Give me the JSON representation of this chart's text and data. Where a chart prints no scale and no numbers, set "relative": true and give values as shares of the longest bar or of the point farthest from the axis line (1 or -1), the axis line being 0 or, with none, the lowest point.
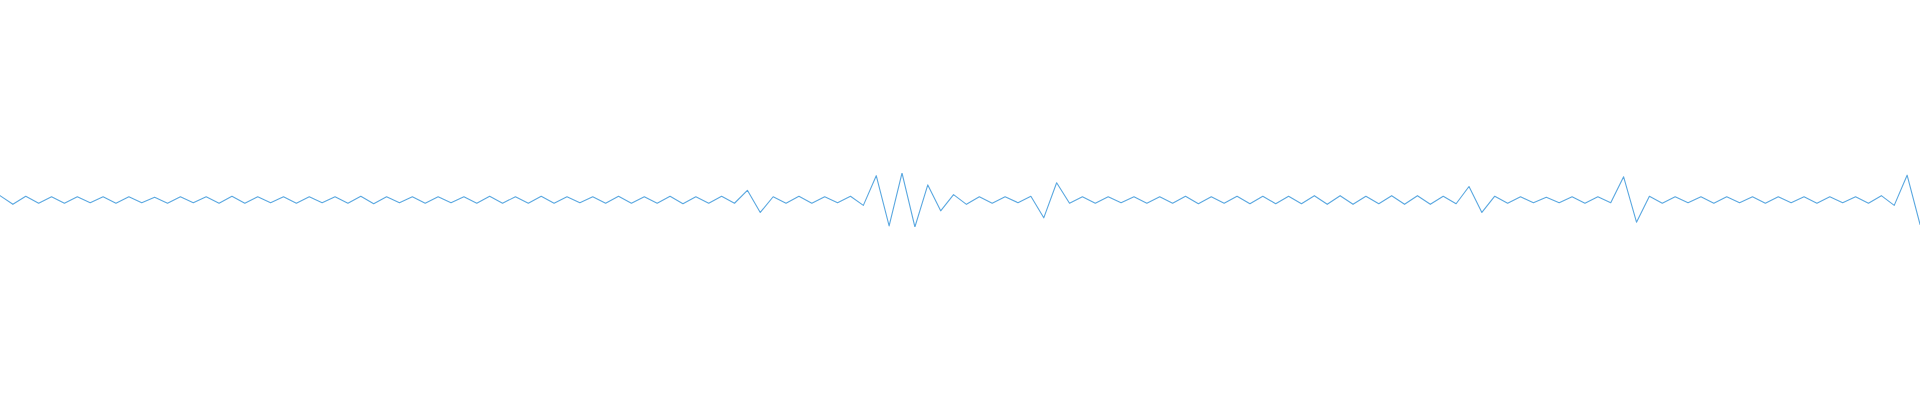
{
  "chart_data": {
    "type": "line",
    "relative": true,
    "marker": "none",
    "line_style": "solid",
    "categories": [
      null,
      null,
      null,
      null,
      null,
      null,
      null,
      null,
      null,
      null,
      null,
      null,
      null,
      null,
      null,
      null,
      null,
      null,
      null,
      null,
      null,
      null,
      null,
      null,
      null,
      null,
      null,
      null,
      null,
      null,
      null,
      null,
      null,
      null,
      null,
      null,
      null,
      null,
      null,
      null,
      null,
      null,
      null,
      null,
      null,
      null,
      null,
      null,
      null,
      null,
      null,
      null,
      null,
      null,
      null,
      null,
      null,
      null,
      null,
      null,
      null,
      null,
      null,
      null,
      null,
      null,
      null,
      null,
      null,
      null,
      null,
      null,
      null,
      null,
      null,
      null,
      null,
      null,
      null,
      null,
      null,
      null,
      null,
      null,
      null,
      null,
      null,
      null,
      null,
      null,
      null,
      null,
      null,
      null,
      null,
      null,
      null,
      null,
      null,
      null,
      null,
      null,
      null,
      null,
      null,
      null,
      null,
      null,
      null,
      null,
      null,
      null,
      null,
      null,
      null,
      null,
      null,
      null,
      null,
      null,
      null,
      null,
      null,
      null,
      null,
      null,
      null,
      null,
      null,
      null,
      null,
      null,
      null,
      null,
      null,
      null,
      null,
      null,
      null,
      null,
      null,
      null,
      null,
      null,
      null,
      null,
      null,
      null,
      null,
      null
    ],
    "series": [
      {
        "color": "#5ba8e0",
        "values": [
          0.58,
          0.42,
          0.57,
          0.44,
          0.56,
          0.44,
          0.56,
          0.45,
          0.56,
          0.44,
          0.56,
          0.45,
          0.55,
          0.44,
          0.56,
          0.45,
          0.56,
          0.44,
          0.57,
          0.44,
          0.56,
          0.45,
          0.56,
          0.44,
          0.56,
          0.45,
          0.56,
          0.44,
          0.57,
          0.43,
          0.56,
          0.45,
          0.56,
          0.44,
          0.56,
          0.45,
          0.56,
          0.44,
          0.57,
          0.44,
          0.56,
          0.44,
          0.57,
          0.44,
          0.56,
          0.45,
          0.56,
          0.44,
          0.57,
          0.44,
          0.56,
          0.44,
          0.57,
          0.43,
          0.56,
          0.44,
          0.57,
          0.44,
          0.68,
          0.27,
          0.56,
          0.44,
          0.57,
          0.44,
          0.56,
          0.45,
          0.57,
          0.4,
          0.95,
          0.02,
          1.0,
          0.0,
          0.78,
          0.3,
          0.6,
          0.42,
          0.56,
          0.44,
          0.56,
          0.45,
          0.57,
          0.17,
          0.82,
          0.44,
          0.56,
          0.44,
          0.56,
          0.45,
          0.56,
          0.44,
          0.56,
          0.44,
          0.57,
          0.43,
          0.56,
          0.44,
          0.57,
          0.43,
          0.57,
          0.43,
          0.57,
          0.43,
          0.58,
          0.42,
          0.58,
          0.42,
          0.57,
          0.43,
          0.58,
          0.42,
          0.58,
          0.42,
          0.57,
          0.43,
          0.75,
          0.27,
          0.57,
          0.44,
          0.56,
          0.45,
          0.55,
          0.45,
          0.56,
          0.44,
          0.56,
          0.45,
          0.93,
          0.09,
          0.57,
          0.44,
          0.56,
          0.45,
          0.56,
          0.44,
          0.56,
          0.45,
          0.56,
          0.44,
          0.56,
          0.45,
          0.56,
          0.44,
          0.56,
          0.45,
          0.56,
          0.44,
          0.58,
          0.4,
          0.96,
          0.05
        ]
      }
    ]
  }
}
